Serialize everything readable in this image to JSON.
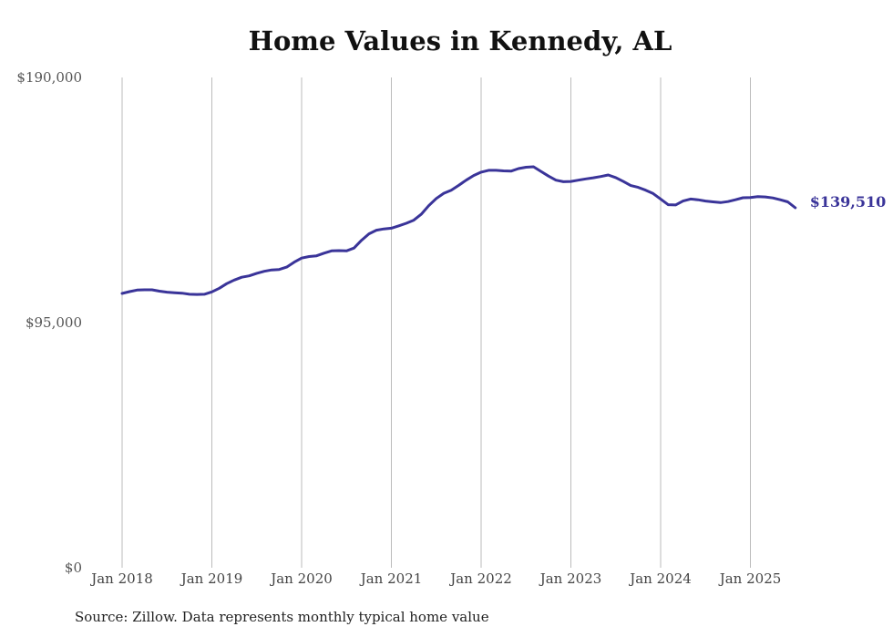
{
  "colors": {
    "line": "#3a3499",
    "grid": "#bbbbbb"
  },
  "footer": {
    "source": "Source: Zillow. Data represents monthly typical home value"
  },
  "chart_data": {
    "type": "line",
    "title": "Home Values in Kennedy, AL",
    "xlabel": "",
    "ylabel": "",
    "ylim": [
      0,
      190000
    ],
    "yticks": [
      0,
      95000,
      190000
    ],
    "ytick_labels": [
      "$0",
      "$95,000",
      "$190,000"
    ],
    "xticks": [
      "2018-01",
      "2019-01",
      "2020-01",
      "2021-01",
      "2022-01",
      "2023-01",
      "2024-01",
      "2025-01"
    ],
    "xtick_labels": [
      "Jan 2018",
      "Jan 2019",
      "Jan 2020",
      "Jan 2021",
      "Jan 2022",
      "Jan 2023",
      "Jan 2024",
      "Jan 2025"
    ],
    "grid": "vertical",
    "end_label": "$139,510",
    "series": [
      {
        "x": [
          "2018-01",
          "2018-02",
          "2018-03",
          "2018-04",
          "2018-05",
          "2018-06",
          "2018-07",
          "2018-08",
          "2018-09",
          "2018-10",
          "2018-11",
          "2018-12",
          "2019-01",
          "2019-02",
          "2019-03",
          "2019-04",
          "2019-05",
          "2019-06",
          "2019-07",
          "2019-08",
          "2019-09",
          "2019-10",
          "2019-11",
          "2019-12",
          "2020-01",
          "2020-02",
          "2020-03",
          "2020-04",
          "2020-05",
          "2020-06",
          "2020-07",
          "2020-08",
          "2020-09",
          "2020-10",
          "2020-11",
          "2020-12",
          "2021-01",
          "2021-02",
          "2021-03",
          "2021-04",
          "2021-05",
          "2021-06",
          "2021-07",
          "2021-08",
          "2021-09",
          "2021-10",
          "2021-11",
          "2021-12",
          "2022-01",
          "2022-02",
          "2022-03",
          "2022-04",
          "2022-05",
          "2022-06",
          "2022-07",
          "2022-08",
          "2022-09",
          "2022-10",
          "2022-11",
          "2022-12",
          "2023-01",
          "2023-02",
          "2023-03",
          "2023-04",
          "2023-05",
          "2023-06",
          "2023-07",
          "2023-08",
          "2023-09",
          "2023-10",
          "2023-11",
          "2023-12",
          "2024-01",
          "2024-02",
          "2024-03",
          "2024-04",
          "2024-05",
          "2024-06",
          "2024-07",
          "2024-08",
          "2024-09",
          "2024-10",
          "2024-11",
          "2024-12",
          "2025-01",
          "2025-02",
          "2025-03",
          "2025-04",
          "2025-05",
          "2025-06",
          "2025-07"
        ],
        "values": [
          106300,
          107000,
          107600,
          107700,
          107700,
          107200,
          106800,
          106600,
          106400,
          106000,
          105900,
          106000,
          106900,
          108300,
          110100,
          111500,
          112600,
          113100,
          114100,
          114900,
          115400,
          115600,
          116500,
          118400,
          120000,
          120600,
          120900,
          121900,
          122800,
          122900,
          122800,
          123900,
          126900,
          129400,
          130800,
          131300,
          131600,
          132500,
          133500,
          134700,
          137000,
          140300,
          143100,
          145100,
          146300,
          148200,
          150200,
          152000,
          153300,
          154000,
          154000,
          153800,
          153700,
          154700,
          155200,
          155400,
          153600,
          151800,
          150200,
          149600,
          149700,
          150200,
          150700,
          151100,
          151600,
          152200,
          151200,
          149700,
          148100,
          147400,
          146300,
          145000,
          142900,
          140700,
          140600,
          142100,
          142900,
          142600,
          142100,
          141800,
          141500,
          141900,
          142600,
          143400,
          143500,
          143800,
          143700,
          143300,
          142600,
          141800,
          139510
        ]
      }
    ]
  }
}
